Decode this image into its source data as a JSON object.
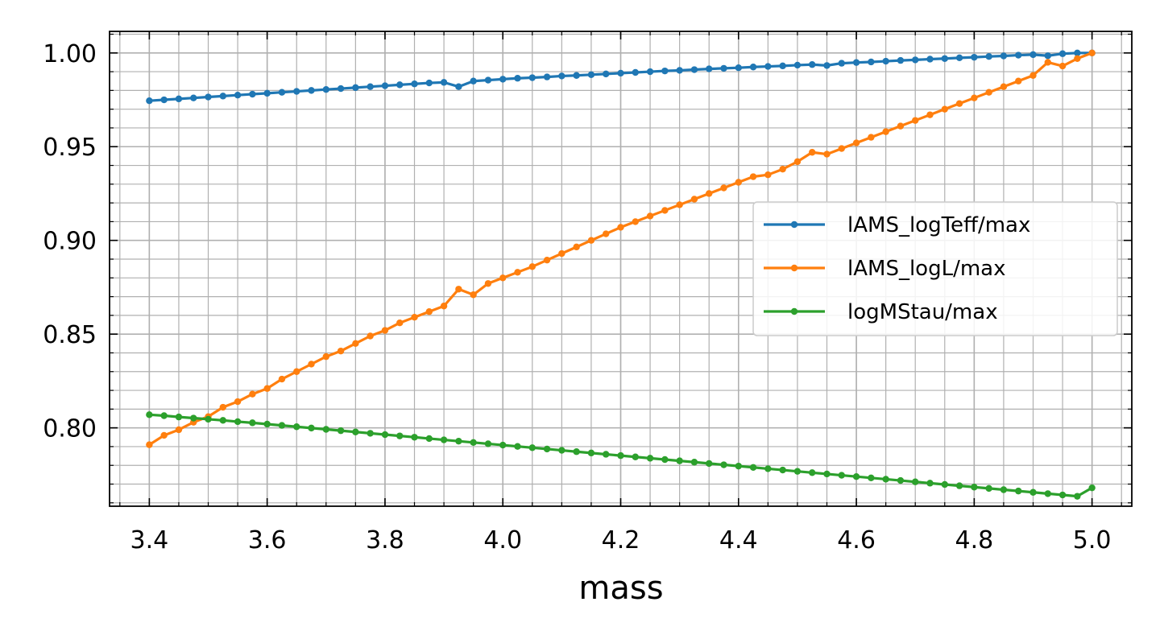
{
  "chart_data": {
    "type": "line",
    "xlabel": "mass",
    "ylabel": "",
    "xlim": [
      3.3325,
      5.0675
    ],
    "ylim": [
      0.7582,
      1.0115
    ],
    "x_major_ticks": [
      3.4,
      3.6,
      3.8,
      4.0,
      4.2,
      4.4,
      4.6,
      4.8,
      5.0
    ],
    "x_tick_labels": [
      "3.4",
      "3.6",
      "3.8",
      "4.0",
      "4.2",
      "4.4",
      "4.6",
      "4.8",
      "5.0"
    ],
    "y_major_ticks": [
      0.8,
      0.85,
      0.9,
      0.95,
      1.0
    ],
    "y_tick_labels": [
      "0.80",
      "0.85",
      "0.90",
      "0.95",
      "1.00"
    ],
    "grid": "on (major and minor)",
    "legend_position": "center-right",
    "x_start": 3.4,
    "x_step": 0.025,
    "series": [
      {
        "name": "lAMS_logTeff/max",
        "color": "#1f77b4",
        "values": [
          0.9745,
          0.975,
          0.9755,
          0.976,
          0.9765,
          0.977,
          0.9775,
          0.978,
          0.9785,
          0.979,
          0.9795,
          0.98,
          0.9805,
          0.981,
          0.9815,
          0.982,
          0.9825,
          0.983,
          0.9835,
          0.984,
          0.9843,
          0.982,
          0.985,
          0.9855,
          0.986,
          0.9865,
          0.9868,
          0.9872,
          0.9877,
          0.988,
          0.9884,
          0.9888,
          0.9892,
          0.9896,
          0.99,
          0.9904,
          0.9907,
          0.9911,
          0.9915,
          0.9918,
          0.9921,
          0.9925,
          0.9928,
          0.9931,
          0.9935,
          0.9938,
          0.9933,
          0.9945,
          0.9949,
          0.9952,
          0.9956,
          0.996,
          0.9963,
          0.9967,
          0.997,
          0.9974,
          0.9977,
          0.9981,
          0.9984,
          0.9988,
          0.9991,
          0.9985,
          0.9996,
          1.0,
          1.0
        ]
      },
      {
        "name": "lAMS_logL/max",
        "color": "#ff7f0e",
        "values": [
          0.791,
          0.796,
          0.799,
          0.803,
          0.806,
          0.811,
          0.814,
          0.818,
          0.821,
          0.826,
          0.83,
          0.834,
          0.838,
          0.841,
          0.845,
          0.849,
          0.852,
          0.856,
          0.859,
          0.862,
          0.865,
          0.874,
          0.871,
          0.877,
          0.88,
          0.883,
          0.886,
          0.8895,
          0.893,
          0.8965,
          0.9,
          0.9035,
          0.907,
          0.91,
          0.913,
          0.916,
          0.919,
          0.922,
          0.925,
          0.928,
          0.931,
          0.934,
          0.935,
          0.938,
          0.942,
          0.947,
          0.946,
          0.949,
          0.952,
          0.955,
          0.958,
          0.961,
          0.964,
          0.967,
          0.97,
          0.973,
          0.976,
          0.979,
          0.982,
          0.985,
          0.988,
          0.995,
          0.993,
          0.997,
          1.0
        ]
      },
      {
        "name": "logMStau/max",
        "color": "#2ca02c",
        "values": [
          0.807,
          0.8065,
          0.8058,
          0.8052,
          0.8046,
          0.804,
          0.8033,
          0.8027,
          0.802,
          0.8013,
          0.8006,
          0.7999,
          0.7992,
          0.7985,
          0.7978,
          0.7971,
          0.7964,
          0.7957,
          0.795,
          0.7943,
          0.7936,
          0.7929,
          0.7922,
          0.7915,
          0.7908,
          0.7901,
          0.7894,
          0.7887,
          0.788,
          0.7873,
          0.7866,
          0.7859,
          0.7852,
          0.7845,
          0.7838,
          0.7831,
          0.7824,
          0.7817,
          0.781,
          0.7803,
          0.7796,
          0.7789,
          0.7782,
          0.7775,
          0.7768,
          0.7761,
          0.7754,
          0.7747,
          0.774,
          0.7733,
          0.7726,
          0.7719,
          0.7712,
          0.7705,
          0.7698,
          0.7691,
          0.7684,
          0.7677,
          0.767,
          0.7663,
          0.7656,
          0.7649,
          0.7642,
          0.7635,
          0.768
        ]
      }
    ]
  }
}
